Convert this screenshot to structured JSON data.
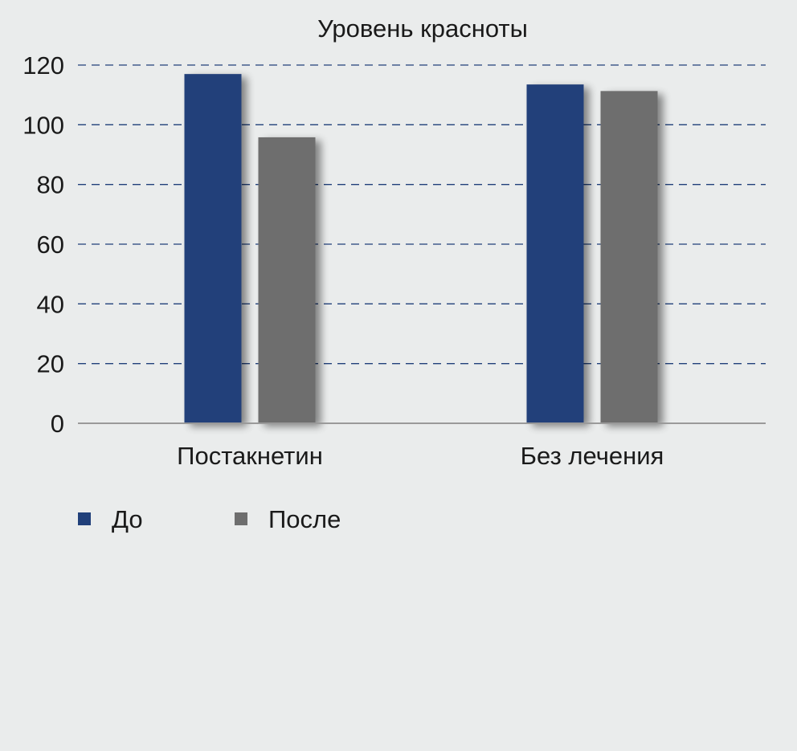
{
  "chart_data": {
    "type": "bar",
    "title": "Уровень красноты",
    "xlabel": "",
    "ylabel": "",
    "categories": [
      "Постакнетин",
      "Без лечения"
    ],
    "series": [
      {
        "name": "До",
        "values": [
          117,
          113.5
        ],
        "color": "#21407a"
      },
      {
        "name": "После",
        "values": [
          95.8,
          111.3
        ],
        "color": "#6e6e6e"
      }
    ],
    "ylim": [
      0,
      120
    ],
    "yticks": [
      0,
      20,
      40,
      60,
      80,
      100,
      120
    ],
    "grid": true,
    "grid_style": "dashed",
    "grid_color": "#21407a",
    "axis_color": "#9a9a9a",
    "legend_position": "bottom-left"
  }
}
